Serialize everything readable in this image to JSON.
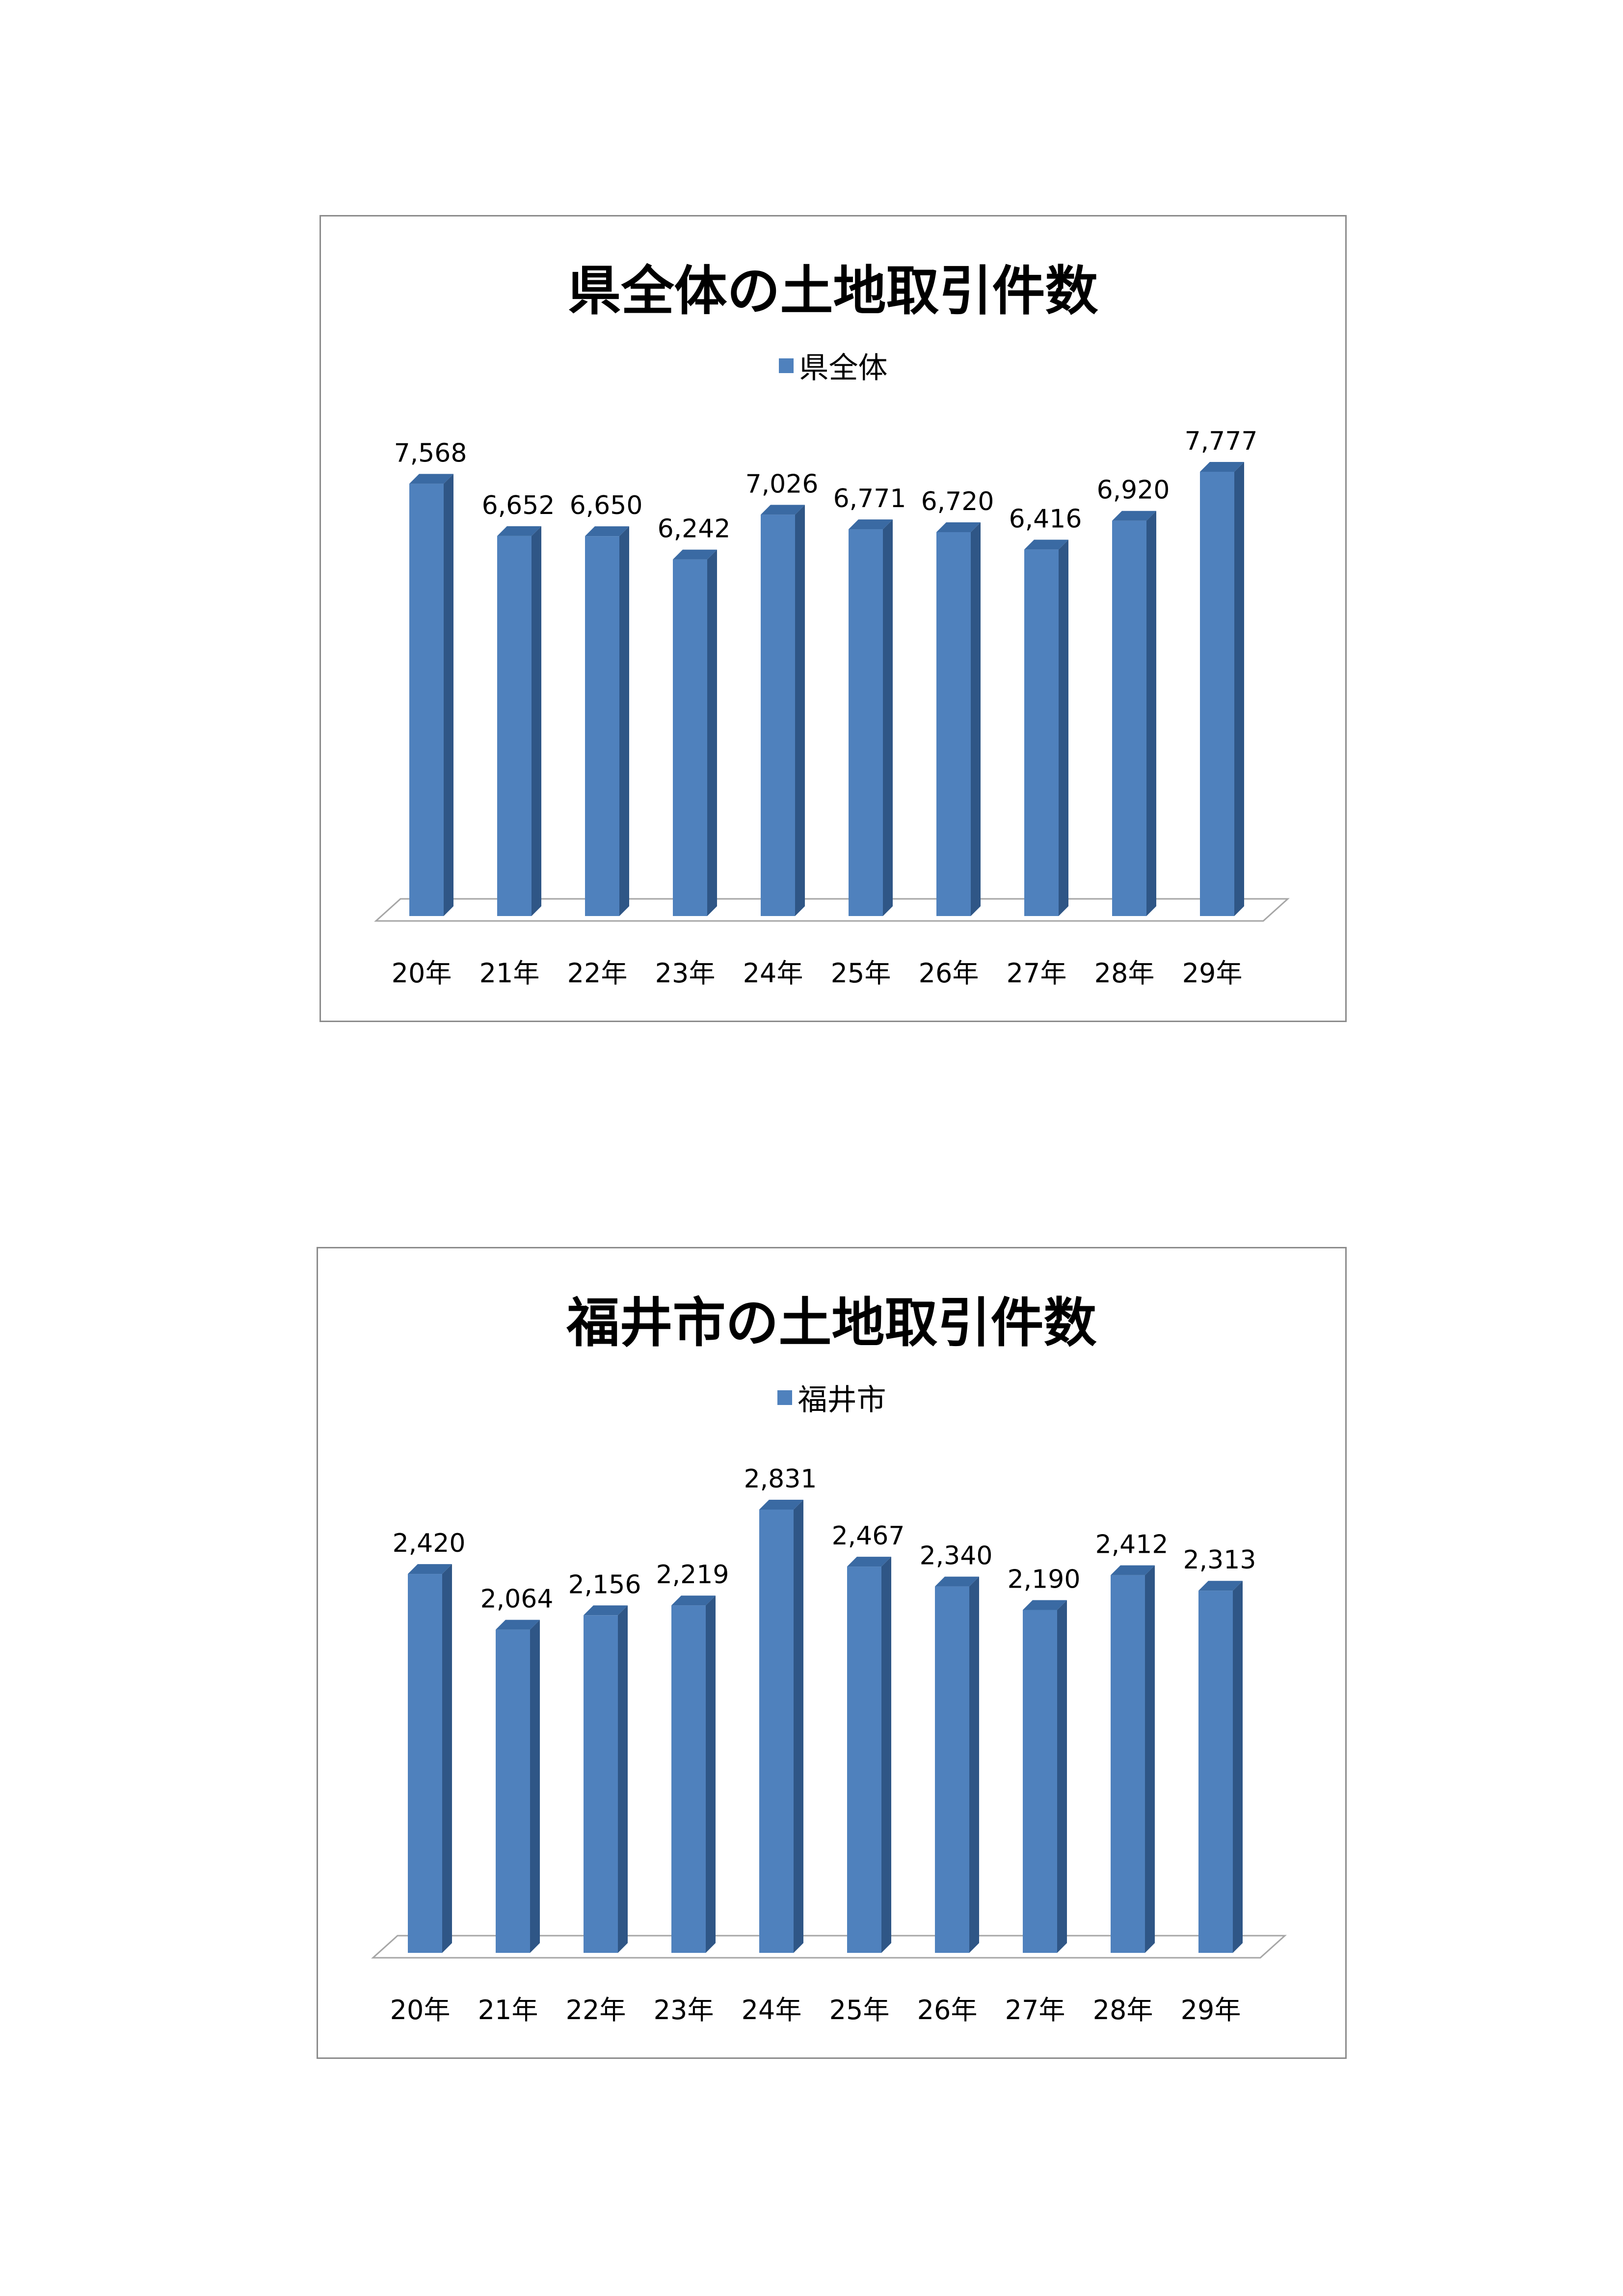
{
  "chart_data": [
    {
      "type": "bar",
      "title": "県全体の土地取引件数",
      "categories": [
        "20年",
        "21年",
        "22年",
        "23年",
        "24年",
        "25年",
        "26年",
        "27年",
        "28年",
        "29年"
      ],
      "series": [
        {
          "name": "県全体",
          "values": [
            7568,
            6652,
            6650,
            6242,
            7026,
            6771,
            6720,
            6416,
            6920,
            7777
          ],
          "labels": [
            "7,568",
            "6,652",
            "6,650",
            "6,242",
            "7,026",
            "6,771",
            "6,720",
            "6,416",
            "6,920",
            "7,777"
          ]
        }
      ],
      "ylim": [
        0,
        7777
      ],
      "grid": false,
      "legend": "top-center",
      "colors": {
        "bar_front": "#4f81bd",
        "bar_side": "#2f5686",
        "bar_top": "#3a6aa3",
        "floor": "#a6a6a6"
      }
    },
    {
      "type": "bar",
      "title": "福井市の土地取引件数",
      "categories": [
        "20年",
        "21年",
        "22年",
        "23年",
        "24年",
        "25年",
        "26年",
        "27年",
        "28年",
        "29年"
      ],
      "series": [
        {
          "name": "福井市",
          "values": [
            2420,
            2064,
            2156,
            2219,
            2831,
            2467,
            2340,
            2190,
            2412,
            2313
          ],
          "labels": [
            "2,420",
            "2,064",
            "2,156",
            "2,219",
            "2,831",
            "2,467",
            "2,340",
            "2,190",
            "2,412",
            "2,313"
          ]
        }
      ],
      "ylim": [
        0,
        2831
      ],
      "grid": false,
      "legend": "top-center",
      "colors": {
        "bar_front": "#4f81bd",
        "bar_side": "#2f5686",
        "bar_top": "#3a6aa3",
        "floor": "#a6a6a6"
      }
    }
  ]
}
